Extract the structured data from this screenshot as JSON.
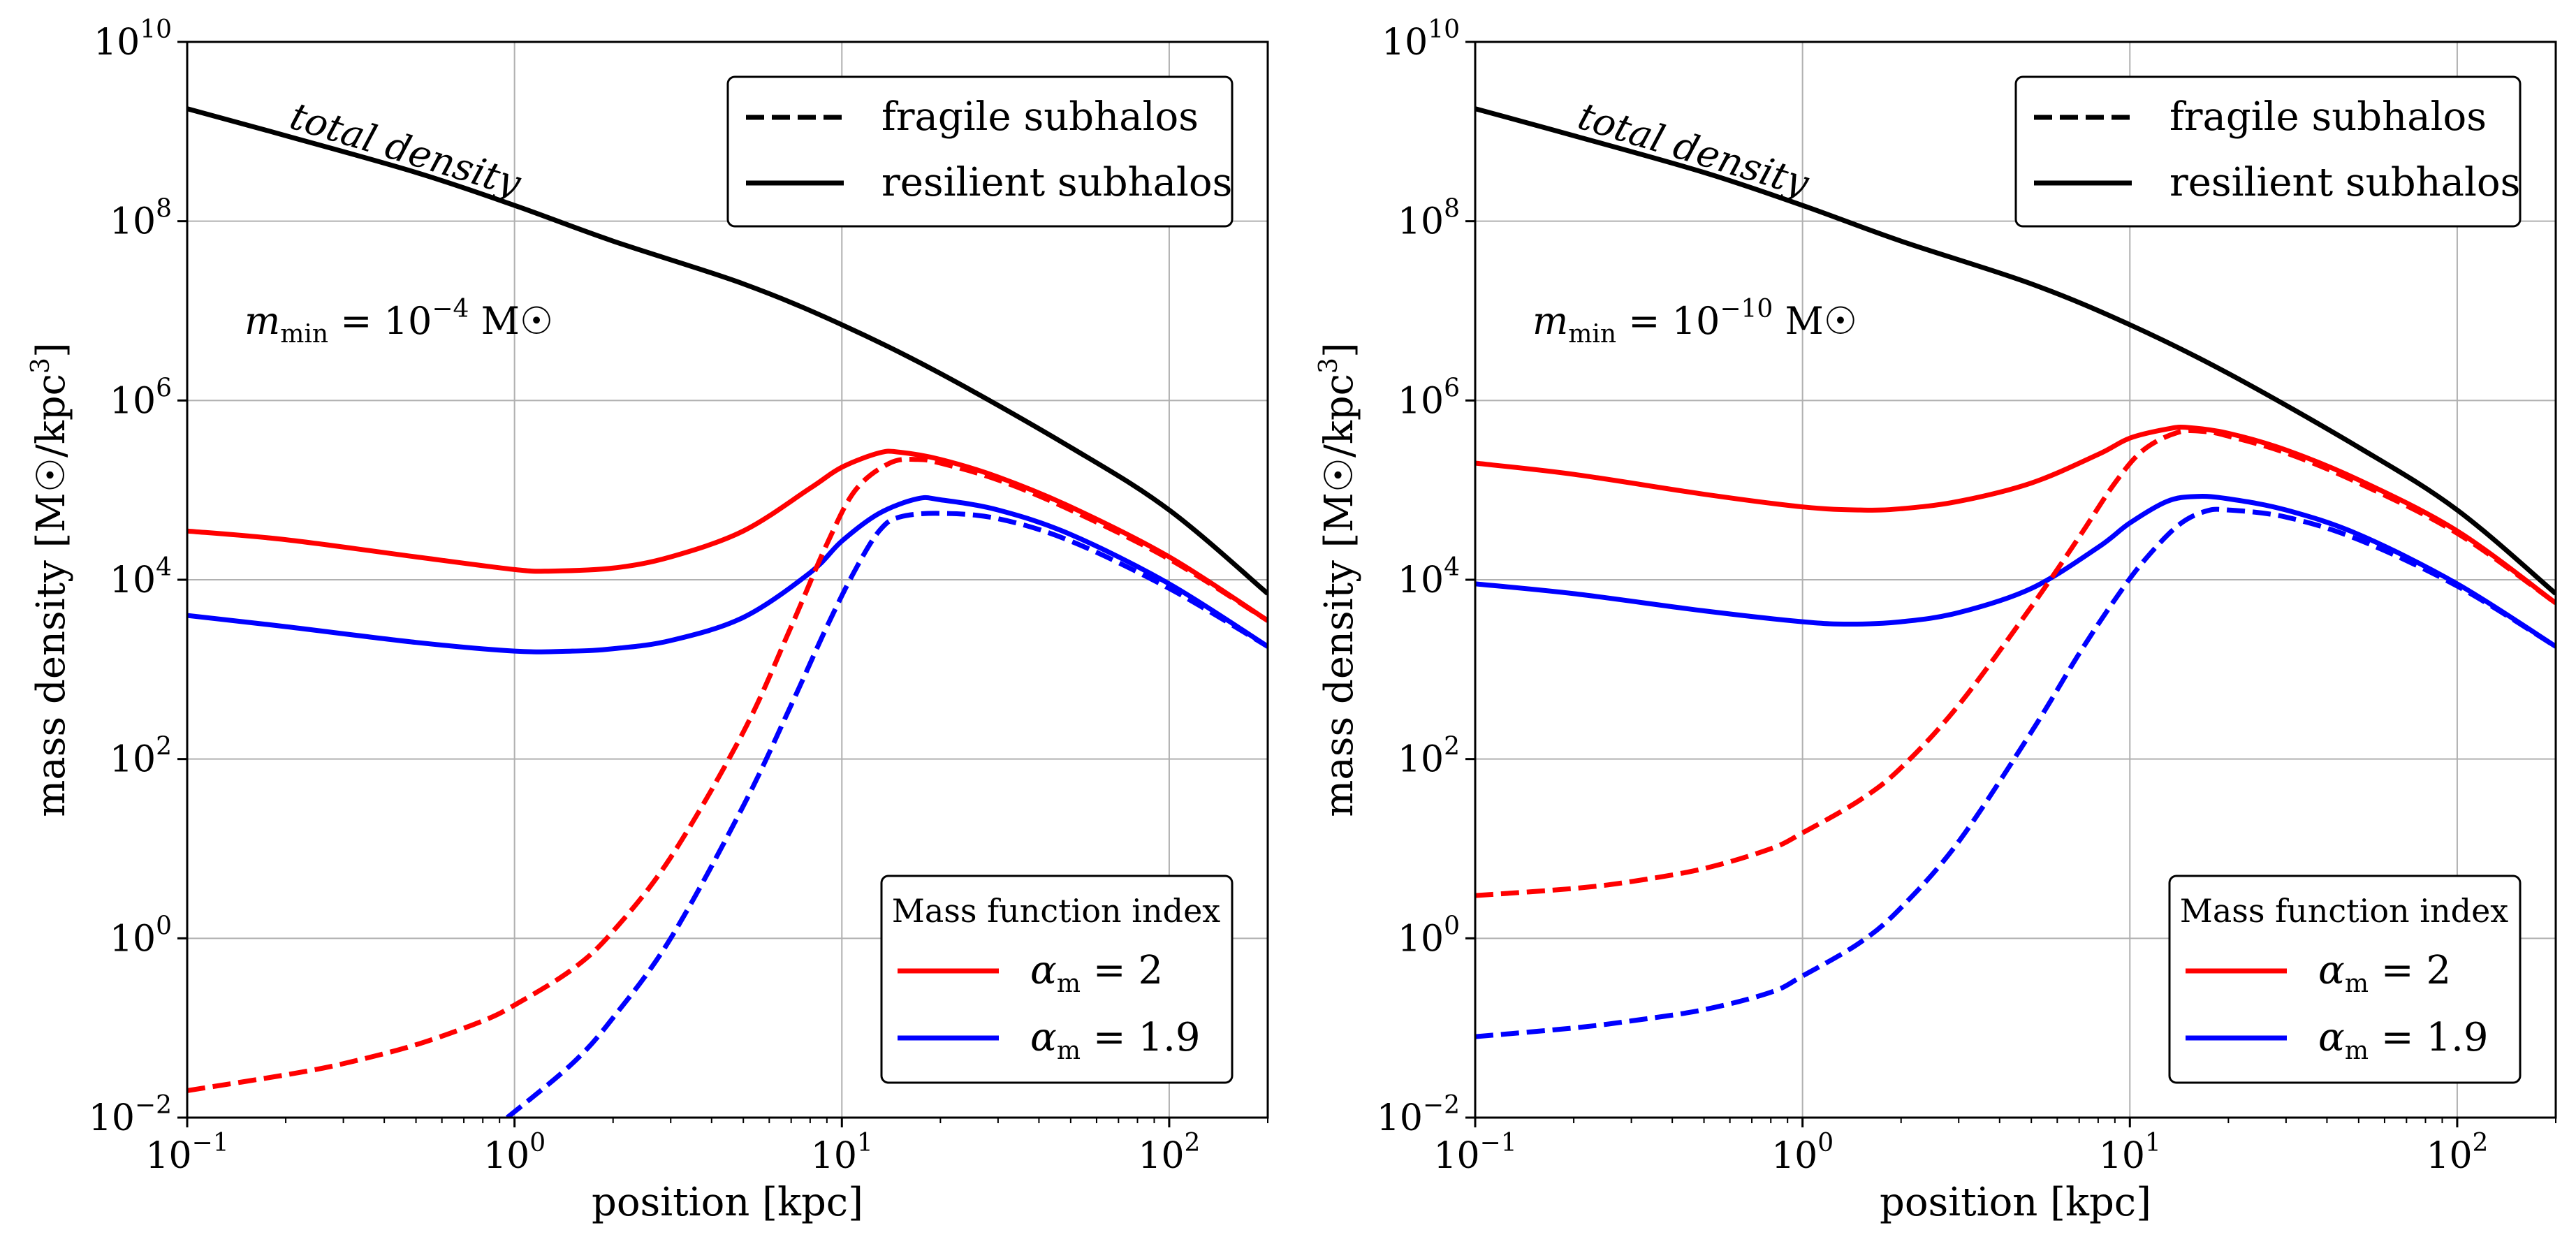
{
  "chart_data": [
    {
      "type": "line",
      "xscale": "log",
      "yscale": "log",
      "xlim": [
        0.1,
        200
      ],
      "ylim": [
        0.01,
        10000000000.0
      ],
      "xlabel": "position [kpc]",
      "ylabel": "mass density [M☉/kpc3]",
      "xticks": [
        {
          "base": "10",
          "exp": "−1"
        },
        {
          "base": "10",
          "exp": "0"
        },
        {
          "base": "10",
          "exp": "1"
        },
        {
          "base": "10",
          "exp": "2"
        }
      ],
      "yticks": [
        {
          "base": "10",
          "exp": "−2"
        },
        {
          "base": "10",
          "exp": "0"
        },
        {
          "base": "10",
          "exp": "2"
        },
        {
          "base": "10",
          "exp": "4"
        },
        {
          "base": "10",
          "exp": "6"
        },
        {
          "base": "10",
          "exp": "8"
        },
        {
          "base": "10",
          "exp": "10"
        }
      ],
      "grid": true,
      "annotation_total": "total density",
      "annotation_mmin": {
        "sym": "m",
        "sub": "min",
        "eq": " = 10",
        "exp": "−4",
        "unit": " M☉"
      },
      "legend_style": {
        "placement": "top-right",
        "entries": [
          {
            "label": "fragile subhalos",
            "dash": "dashed"
          },
          {
            "label": "resilient subhalos",
            "dash": "solid"
          }
        ]
      },
      "legend_index": {
        "placement": "bottom-right",
        "title": "Mass function index",
        "entries": [
          {
            "label": "α",
            "sub": "m",
            "eq": " = 2",
            "color": "#ff0000"
          },
          {
            "label": "α",
            "sub": "m",
            "eq": " = 1.9",
            "color": "#0000ff"
          }
        ]
      },
      "series": [
        {
          "name": "total density",
          "color": "#000000",
          "dash": "solid",
          "x": [
            0.1,
            0.2,
            0.5,
            1,
            2,
            5,
            10,
            20,
            50,
            100,
            200
          ],
          "y": [
            1800000000.0,
            900000000.0,
            350000000.0,
            150000000.0,
            60000000.0,
            20000000.0,
            7000000.0,
            2000000.0,
            300000.0,
            60000.0,
            7000.0
          ]
        },
        {
          "name": "resilient α=2",
          "color": "#ff0000",
          "dash": "solid",
          "x": [
            0.1,
            0.2,
            0.5,
            1,
            1.3,
            2,
            3,
            5,
            8,
            10,
            13,
            15,
            20,
            30,
            50,
            100,
            200
          ],
          "y": [
            35000.0,
            28000.0,
            18000.0,
            13000.0,
            12500.0,
            13500.0,
            18000.0,
            35000.0,
            105000.0,
            180000.0,
            260000.0,
            265000.0,
            220000.0,
            140000.0,
            65000.0,
            18000.0,
            3500.0
          ]
        },
        {
          "name": "resilient α=1.9",
          "color": "#0000ff",
          "dash": "solid",
          "x": [
            0.1,
            0.2,
            0.5,
            1,
            1.5,
            2,
            3,
            5,
            8,
            10,
            13,
            17,
            20,
            30,
            50,
            100,
            200
          ],
          "y": [
            4000.0,
            3000.0,
            2000.0,
            1600.0,
            1600.0,
            1700.0,
            2100.0,
            3800.0,
            12000.0,
            27000.0,
            55000.0,
            80000.0,
            78000.0,
            60000.0,
            32000.0,
            9000.0,
            1800.0
          ]
        },
        {
          "name": "fragile α=2",
          "color": "#ff0000",
          "dash": "dashed",
          "x": [
            0.1,
            0.2,
            0.3,
            0.5,
            0.8,
            1,
            1.5,
            2,
            3,
            5,
            7,
            9,
            11,
            14,
            17,
            20,
            30,
            50,
            100,
            200
          ],
          "y": [
            0.02,
            0.03,
            0.04,
            0.065,
            0.12,
            0.18,
            0.45,
            1.2,
            8,
            200,
            3000,
            25000.0,
            100000.0,
            200000.0,
            220000.0,
            200000.0,
            130000.0,
            60000.0,
            17000.0,
            3500.0
          ]
        },
        {
          "name": "fragile α=1.9",
          "color": "#0000ff",
          "dash": "dashed",
          "x": [
            0.95,
            1.5,
            2,
            3,
            5,
            7,
            9,
            11,
            13,
            15,
            20,
            30,
            50,
            100,
            200
          ],
          "y": [
            0.01,
            0.04,
            0.13,
            1,
            30,
            400,
            3000,
            13000.0,
            35000.0,
            50000.0,
            55000.0,
            48000.0,
            27000.0,
            8000.0,
            1800.0
          ]
        }
      ]
    },
    {
      "type": "line",
      "xscale": "log",
      "yscale": "log",
      "xlim": [
        0.1,
        200
      ],
      "ylim": [
        0.01,
        10000000000.0
      ],
      "xlabel": "position [kpc]",
      "ylabel": "mass density [M☉/kpc3]",
      "xticks": [
        {
          "base": "10",
          "exp": "−1"
        },
        {
          "base": "10",
          "exp": "0"
        },
        {
          "base": "10",
          "exp": "1"
        },
        {
          "base": "10",
          "exp": "2"
        }
      ],
      "yticks": [
        {
          "base": "10",
          "exp": "−2"
        },
        {
          "base": "10",
          "exp": "0"
        },
        {
          "base": "10",
          "exp": "2"
        },
        {
          "base": "10",
          "exp": "4"
        },
        {
          "base": "10",
          "exp": "6"
        },
        {
          "base": "10",
          "exp": "8"
        },
        {
          "base": "10",
          "exp": "10"
        }
      ],
      "grid": true,
      "annotation_total": "total density",
      "annotation_mmin": {
        "sym": "m",
        "sub": "min",
        "eq": " = 10",
        "exp": "−10",
        "unit": " M☉"
      },
      "legend_style": {
        "placement": "top-right",
        "entries": [
          {
            "label": "fragile subhalos",
            "dash": "dashed"
          },
          {
            "label": "resilient subhalos",
            "dash": "solid"
          }
        ]
      },
      "legend_index": {
        "placement": "bottom-right",
        "title": "Mass function index",
        "entries": [
          {
            "label": "α",
            "sub": "m",
            "eq": " = 2",
            "color": "#ff0000"
          },
          {
            "label": "α",
            "sub": "m",
            "eq": " = 1.9",
            "color": "#0000ff"
          }
        ]
      },
      "series": [
        {
          "name": "total density",
          "color": "#000000",
          "dash": "solid",
          "x": [
            0.1,
            0.2,
            0.5,
            1,
            2,
            5,
            10,
            20,
            50,
            100,
            200
          ],
          "y": [
            1800000000.0,
            900000000.0,
            350000000.0,
            150000000.0,
            60000000.0,
            20000000.0,
            7000000.0,
            2000000.0,
            300000.0,
            60000.0,
            7000.0
          ]
        },
        {
          "name": "resilient α=2",
          "color": "#ff0000",
          "dash": "solid",
          "x": [
            0.1,
            0.2,
            0.5,
            1,
            1.5,
            2,
            3,
            5,
            8,
            10,
            13,
            15,
            20,
            30,
            50,
            100,
            200
          ],
          "y": [
            200000.0,
            150000.0,
            90000.0,
            65000.0,
            60000.0,
            62000.0,
            75000.0,
            120000.0,
            250000.0,
            380000.0,
            480000.0,
            500000.0,
            430000.0,
            280000.0,
            130000.0,
            35000.0,
            5500.0
          ]
        },
        {
          "name": "resilient α=1.9",
          "color": "#0000ff",
          "dash": "solid",
          "x": [
            0.1,
            0.2,
            0.5,
            1,
            1.4,
            2,
            3,
            5,
            8,
            10,
            13,
            16,
            20,
            30,
            50,
            100,
            200
          ],
          "y": [
            9000.0,
            7000.0,
            4500.0,
            3400.0,
            3200.0,
            3400.0,
            4300.0,
            8000.0,
            23000.0,
            43000.0,
            75000.0,
            85000.0,
            80000.0,
            60000.0,
            32000.0,
            9000.0,
            1800.0
          ]
        },
        {
          "name": "fragile α=2",
          "color": "#ff0000",
          "dash": "dashed",
          "x": [
            0.1,
            0.2,
            0.3,
            0.5,
            0.8,
            1,
            1.5,
            2,
            3,
            5,
            7,
            9,
            11,
            14,
            17,
            20,
            30,
            50,
            100,
            200
          ],
          "y": [
            3,
            3.6,
            4.3,
            6,
            10,
            15,
            35,
            80,
            400,
            5000,
            30000.0,
            120000.0,
            280000.0,
            440000.0,
            450000.0,
            400000.0,
            260000.0,
            120000.0,
            33000.0,
            5500.0
          ]
        },
        {
          "name": "fragile α=1.9",
          "color": "#0000ff",
          "dash": "dashed",
          "x": [
            0.1,
            0.2,
            0.3,
            0.5,
            0.8,
            1,
            1.5,
            2,
            3,
            5,
            7,
            9,
            11,
            14,
            17,
            20,
            30,
            50,
            100,
            200
          ],
          "y": [
            0.08,
            0.1,
            0.12,
            0.16,
            0.25,
            0.38,
            0.9,
            2.2,
            12,
            200,
            1500,
            6000,
            16000.0,
            40000.0,
            58000.0,
            60000.0,
            50000.0,
            28000.0,
            8500.0,
            1800.0
          ]
        }
      ]
    }
  ]
}
